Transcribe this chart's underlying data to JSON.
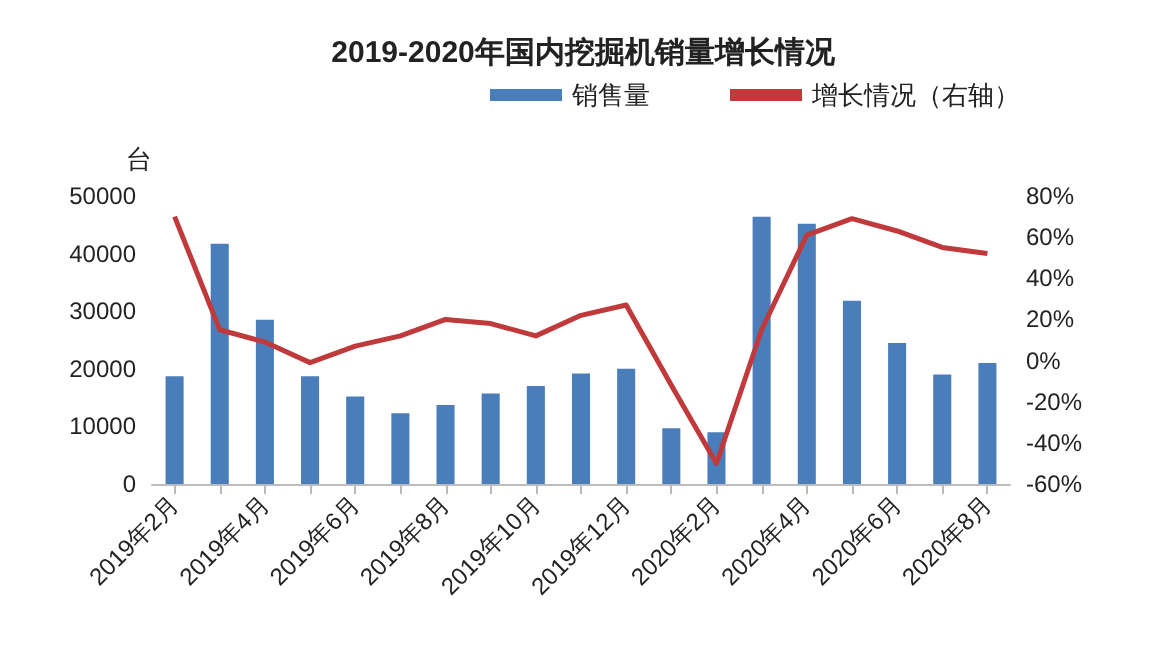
{
  "chart_data": {
    "type": "bar",
    "title": "2019-2020年国内挖掘机销量增长情况",
    "ylabel": "台",
    "categories": [
      "2019年2月",
      null,
      "2019年4月",
      null,
      "2019年6月",
      null,
      "2019年8月",
      null,
      "2019年10月",
      null,
      "2019年12月",
      null,
      "2020年2月",
      null,
      "2020年4月",
      null,
      "2020年6月",
      null,
      "2020年8月"
    ],
    "series": [
      {
        "name": "销售量",
        "color": "#4a7ebb",
        "values": [
          18700,
          41700,
          28500,
          18700,
          15200,
          12300,
          13700,
          15700,
          17000,
          19200,
          20000,
          9700,
          9000,
          46400,
          45200,
          31800,
          24500,
          19000,
          21000
        ]
      },
      {
        "name": "增长情况（右轴）",
        "type": "line",
        "axis": "y2",
        "color": "#c0393b",
        "values": [
          70,
          15,
          9,
          -1,
          7,
          12,
          20,
          18,
          12,
          22,
          27,
          -12,
          -50,
          15,
          61,
          69,
          63,
          55,
          52
        ]
      }
    ],
    "ylim": [
      0,
      50000
    ],
    "yticks": [
      0,
      10000,
      20000,
      30000,
      40000,
      50000
    ],
    "y2lim": [
      -60,
      80
    ],
    "y2ticks": [
      {
        "value": -60,
        "label": "-60%"
      },
      {
        "value": -40,
        "label": "-40%"
      },
      {
        "value": -20,
        "label": "-20%"
      },
      {
        "value": 0,
        "label": "0%"
      },
      {
        "value": 20,
        "label": "20%"
      },
      {
        "value": 40,
        "label": "40%"
      },
      {
        "value": 60,
        "label": "60%"
      },
      {
        "value": 80,
        "label": "80%"
      }
    ],
    "legend": "top right",
    "grid": false,
    "marker": "none"
  }
}
